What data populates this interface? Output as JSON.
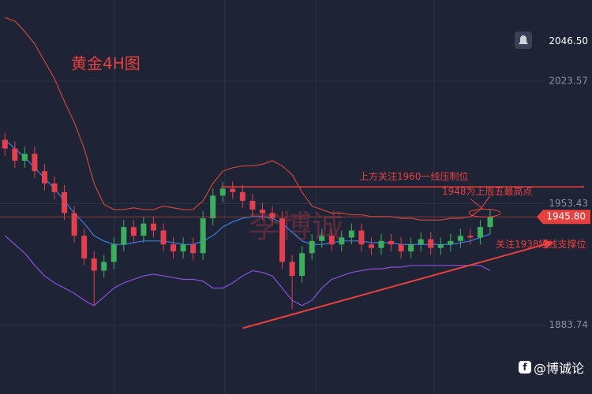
{
  "chart_data": {
    "type": "candlestick",
    "title": "黄金4H图",
    "open": [
      1990,
      1985,
      1978,
      1982,
      1972,
      1965,
      1960,
      1948,
      1935,
      1922,
      1915,
      1920,
      1930,
      1940,
      1935,
      1942,
      1938,
      1930,
      1926,
      1930,
      1925,
      1945,
      1958,
      1962,
      1960,
      1955,
      1950,
      1948,
      1945,
      1920,
      1912,
      1925,
      1932,
      1935,
      1930,
      1934,
      1938,
      1930,
      1928,
      1932,
      1930,
      1926,
      1930,
      1933,
      1928,
      1930,
      1932,
      1935,
      1934,
      1940
    ],
    "high": [
      1994,
      1989,
      1986,
      1986,
      1976,
      1969,
      1964,
      1952,
      1939,
      1926,
      1924,
      1934,
      1944,
      1944,
      1946,
      1946,
      1942,
      1934,
      1934,
      1934,
      1949,
      1962,
      1966,
      1966,
      1964,
      1959,
      1954,
      1952,
      1949,
      1924,
      1929,
      1936,
      1939,
      1939,
      1938,
      1942,
      1942,
      1934,
      1936,
      1936,
      1934,
      1934,
      1937,
      1937,
      1934,
      1936,
      1939,
      1939,
      1944,
      1950
    ],
    "low": [
      1981,
      1974,
      1974,
      1968,
      1961,
      1956,
      1944,
      1931,
      1918,
      1895,
      1911,
      1916,
      1926,
      1931,
      1931,
      1934,
      1926,
      1922,
      1922,
      1921,
      1921,
      1941,
      1954,
      1956,
      1951,
      1946,
      1944,
      1941,
      1916,
      1893,
      1908,
      1921,
      1928,
      1926,
      1926,
      1930,
      1926,
      1924,
      1924,
      1926,
      1922,
      1922,
      1926,
      1924,
      1924,
      1926,
      1928,
      1930,
      1930,
      1936
    ],
    "close": [
      1985,
      1978,
      1982,
      1972,
      1965,
      1960,
      1948,
      1935,
      1922,
      1915,
      1920,
      1930,
      1940,
      1935,
      1942,
      1938,
      1930,
      1926,
      1930,
      1925,
      1945,
      1958,
      1962,
      1960,
      1955,
      1950,
      1948,
      1945,
      1920,
      1912,
      1925,
      1932,
      1935,
      1930,
      1934,
      1938,
      1930,
      1928,
      1932,
      1930,
      1926,
      1930,
      1933,
      1928,
      1930,
      1932,
      1935,
      1934,
      1940,
      1946
    ],
    "up_color": "#3dae5c",
    "down_color": "#e2404f",
    "bands": [
      {
        "color": "#c9463d",
        "values": [
          2060,
          2058,
          2052,
          2045,
          2035,
          2025,
          2012,
          2000,
          1985,
          1965,
          1953,
          1950,
          1950,
          1951,
          1950,
          1950,
          1952,
          1951,
          1950,
          1950,
          1955,
          1965,
          1972,
          1974,
          1975,
          1975,
          1976,
          1978,
          1975,
          1970,
          1960,
          1952,
          1950,
          1948,
          1948,
          1947,
          1947,
          1946,
          1946,
          1946,
          1945,
          1945,
          1944,
          1944,
          1944,
          1945,
          1945,
          1946,
          1950,
          1958
        ]
      },
      {
        "color": "#3b7ce0",
        "values": [
          1990,
          1985,
          1980,
          1974,
          1968,
          1962,
          1955,
          1948,
          1942,
          1935,
          1932,
          1930,
          1930,
          1931,
          1932,
          1932,
          1932,
          1931,
          1930,
          1930,
          1932,
          1935,
          1940,
          1943,
          1945,
          1946,
          1946,
          1945,
          1942,
          1937,
          1932,
          1930,
          1930,
          1931,
          1932,
          1932,
          1932,
          1931,
          1931,
          1931,
          1930,
          1930,
          1930,
          1930,
          1930,
          1930,
          1931,
          1932,
          1934,
          1936
        ]
      },
      {
        "color": "#8d4ee0",
        "values": [
          1935,
          1930,
          1925,
          1918,
          1912,
          1908,
          1905,
          1902,
          1898,
          1895,
          1900,
          1905,
          1908,
          1910,
          1912,
          1913,
          1912,
          1911,
          1910,
          1910,
          1909,
          1905,
          1905,
          1908,
          1912,
          1915,
          1914,
          1912,
          1905,
          1898,
          1895,
          1898,
          1905,
          1910,
          1912,
          1914,
          1915,
          1916,
          1916,
          1917,
          1917,
          1918,
          1918,
          1918,
          1918,
          1918,
          1918,
          1918,
          1918,
          1915
        ]
      }
    ],
    "xlim": [
      -0.5,
      54.5
    ],
    "ylim": [
      1844.3,
      2070.1
    ],
    "yticks": [
      {
        "value": 2046.5,
        "label": "2046.50"
      },
      2023.57,
      1953.43,
      1883.74
    ],
    "last_price": {
      "value": 1945.8,
      "label": "1945.80"
    },
    "resistance": {
      "value": 1963,
      "label": "上方关注1960一线压制位"
    },
    "high_note": {
      "value": 1948,
      "label": "1948为上周五最高点"
    },
    "support": {
      "x": [
        24,
        54.5
      ],
      "y": [
        1882,
        1930
      ],
      "label": "关注1938短线支撑位"
    },
    "watermark": "李博诚",
    "footer": "@博诚论"
  }
}
